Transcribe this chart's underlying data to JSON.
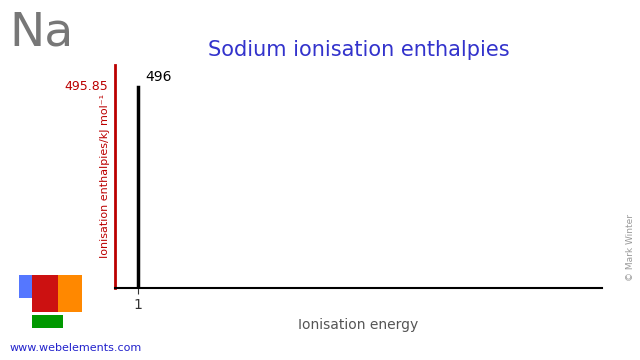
{
  "title": "Sodium ionisation enthalpies",
  "element_symbol": "Na",
  "xlabel": "Ionisation energy",
  "ylabel": "Ionisation enthalpies/kJ mol⁻¹",
  "ionisation_energies": [
    1
  ],
  "ionisation_values": [
    495.85
  ],
  "bar_label": "496",
  "bar_value_label": "495.85",
  "ylim": [
    0,
    550
  ],
  "xlim": [
    0.5,
    11
  ],
  "bar_color": "#000000",
  "yaxis_color": "#bb0000",
  "title_color": "#3333cc",
  "element_color": "#777777",
  "website": "www.webelements.com",
  "website_color": "#2222cc",
  "copyright": "© Mark Winter",
  "copyright_color": "#999999",
  "background_color": "#ffffff",
  "bar_linewidth": 2.5,
  "periodic_blue": "#5577ff",
  "periodic_red": "#cc1111",
  "periodic_orange": "#ff8800",
  "periodic_green": "#009900"
}
